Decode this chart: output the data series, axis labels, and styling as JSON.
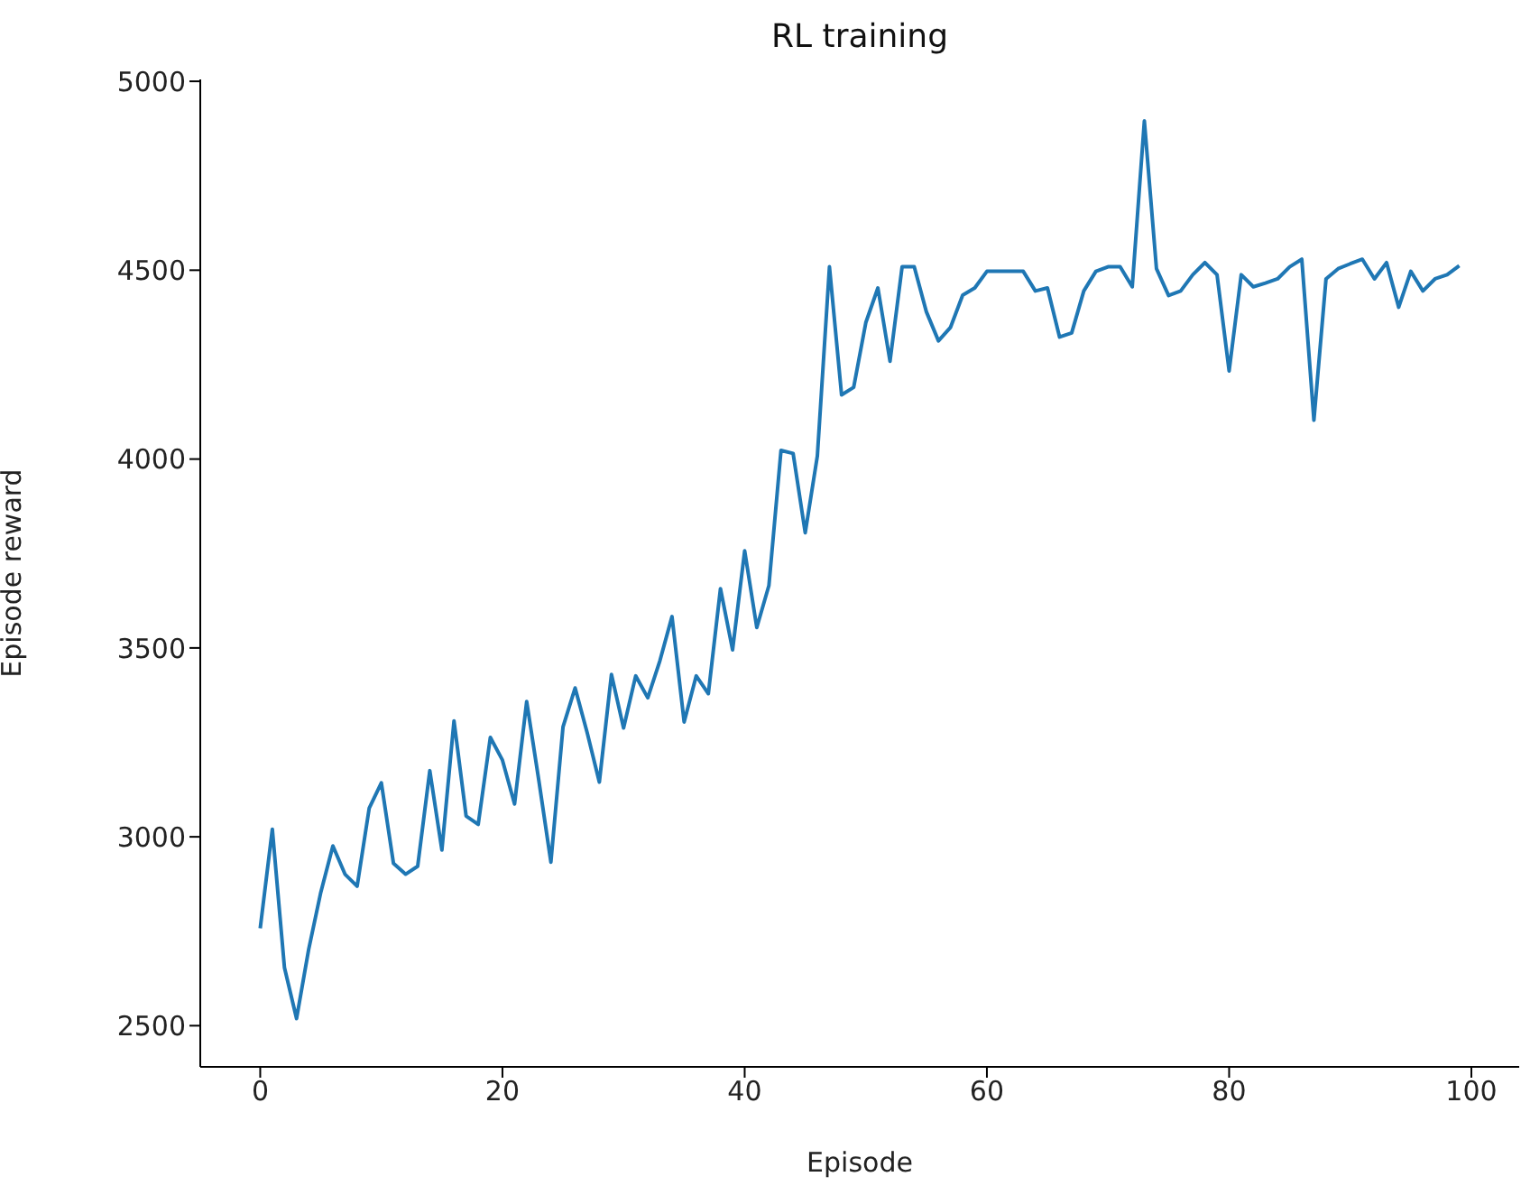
{
  "chart_data": {
    "type": "line",
    "title": "RL training",
    "xlabel": "Episode",
    "ylabel": "Episode reward",
    "x": [
      0,
      1,
      2,
      3,
      4,
      5,
      6,
      7,
      8,
      9,
      10,
      11,
      12,
      13,
      14,
      15,
      16,
      17,
      18,
      19,
      20,
      21,
      22,
      23,
      24,
      25,
      26,
      27,
      28,
      29,
      30,
      31,
      32,
      33,
      34,
      35,
      36,
      37,
      38,
      39,
      40,
      41,
      42,
      43,
      44,
      45,
      46,
      47,
      48,
      49,
      50,
      51,
      52,
      53,
      54,
      55,
      56,
      57,
      58,
      59,
      60,
      61,
      62,
      63,
      64,
      65,
      66,
      67,
      68,
      69,
      70,
      71,
      72,
      73,
      74,
      75,
      76,
      77,
      78,
      79,
      80,
      81,
      82,
      83,
      84,
      85,
      86,
      87,
      88,
      89,
      90,
      91,
      92,
      93,
      94,
      95,
      96,
      97,
      98,
      99
    ],
    "series": [
      {
        "color": "#1f77b4",
        "values": [
          2758,
          3020,
          2654,
          2519,
          2702,
          2853,
          2976,
          2901,
          2869,
          3076,
          3143,
          2930,
          2901,
          2922,
          3175,
          2965,
          3307,
          3055,
          3033,
          3263,
          3203,
          3087,
          3358,
          3150,
          2933,
          3291,
          3394,
          3275,
          3145,
          3430,
          3288,
          3426,
          3368,
          3466,
          3583,
          3304,
          3426,
          3379,
          3657,
          3495,
          3757,
          3554,
          3665,
          4023,
          4015,
          3805,
          4008,
          4509,
          4170,
          4190,
          4361,
          4453,
          4259,
          4509,
          4509,
          4390,
          4313,
          4349,
          4434,
          4453,
          4497,
          4497,
          4497,
          4497,
          4445,
          4453,
          4323,
          4334,
          4445,
          4497,
          4509,
          4509,
          4456,
          4895,
          4504,
          4433,
          4445,
          4488,
          4520,
          4488,
          4233,
          4488,
          4456,
          4466,
          4477,
          4509,
          4529,
          4103,
          4477,
          4504,
          4517,
          4529,
          4477,
          4520,
          4402,
          4497,
          4445,
          4477,
          4488,
          4512
        ]
      }
    ],
    "xlim": [
      -4.95,
      103.95
    ],
    "ylim": [
      2391,
      5005
    ],
    "xticks": [
      0,
      20,
      40,
      60,
      80,
      100
    ],
    "yticks": [
      2500,
      3000,
      3500,
      4000,
      4500,
      5000
    ]
  }
}
